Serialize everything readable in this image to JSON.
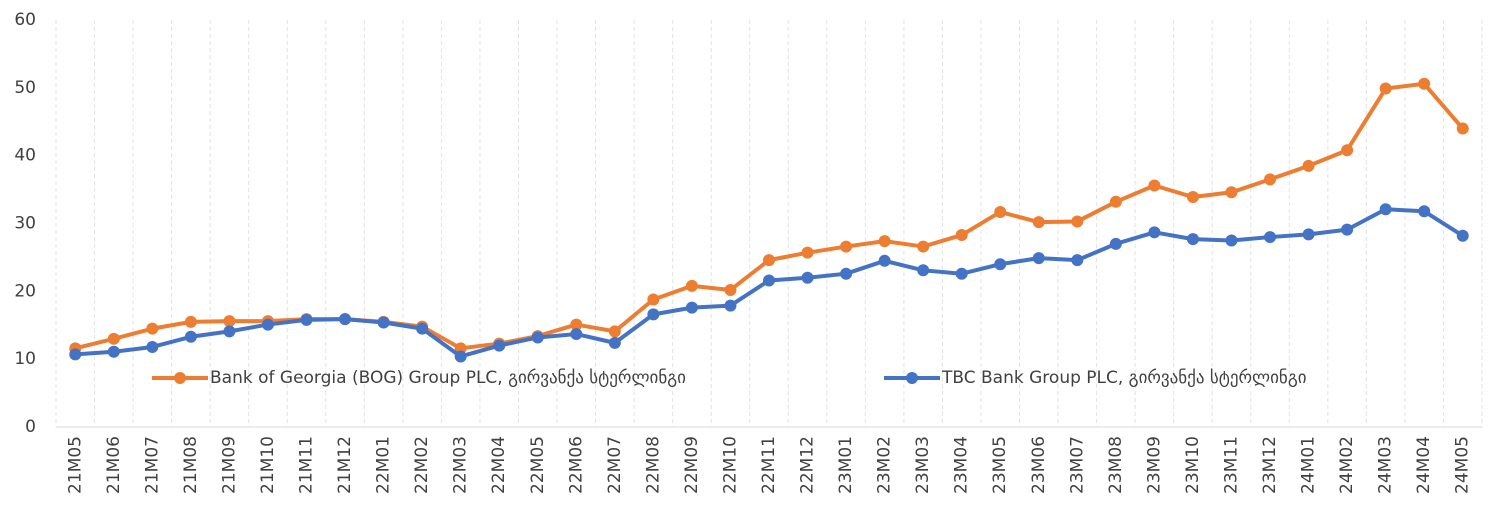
{
  "chart_data": {
    "type": "line",
    "categories": [
      "21M05",
      "21M06",
      "21M07",
      "21M08",
      "21M09",
      "21M10",
      "21M11",
      "21M12",
      "22M01",
      "22M02",
      "22M03",
      "22M04",
      "22M05",
      "22M06",
      "22M07",
      "22M08",
      "22M09",
      "22M10",
      "22M11",
      "22M12",
      "23M01",
      "23M02",
      "23M03",
      "23M04",
      "23M05",
      "23M06",
      "23M07",
      "23M08",
      "23M09",
      "23M10",
      "23M11",
      "23M12",
      "24M01",
      "24M02",
      "24M03",
      "24M04",
      "24M05"
    ],
    "series": [
      {
        "name": "Bank of Georgia (BOG) Group PLC, გირვანქა სტერლინგი",
        "color": "#ed7d31",
        "values": [
          11.6,
          13.0,
          14.5,
          15.5,
          15.6,
          15.6,
          15.9,
          15.9,
          15.5,
          14.8,
          11.6,
          12.3,
          13.4,
          15.1,
          14.1,
          18.8,
          20.8,
          20.2,
          24.6,
          25.7,
          26.6,
          27.4,
          26.6,
          28.3,
          31.7,
          30.2,
          30.3,
          33.2,
          35.6,
          33.9,
          34.6,
          36.5,
          38.5,
          40.8,
          49.9,
          50.6,
          44.0
        ]
      },
      {
        "name": "TBC Bank Group PLC, გირვანქა სტერლინგი",
        "color": "#4472c4",
        "values": [
          10.7,
          11.1,
          11.8,
          13.3,
          14.1,
          15.1,
          15.8,
          15.9,
          15.4,
          14.5,
          10.4,
          12.0,
          13.2,
          13.7,
          12.4,
          16.6,
          17.6,
          17.9,
          21.6,
          22.0,
          22.6,
          24.5,
          23.1,
          22.6,
          24.0,
          24.9,
          24.6,
          27.0,
          28.7,
          27.7,
          27.5,
          28.0,
          28.4,
          29.1,
          32.1,
          31.8,
          28.2
        ]
      }
    ],
    "ylim": [
      0,
      60
    ],
    "yticks": [
      0,
      10,
      20,
      30,
      40,
      50,
      60
    ],
    "grid": true
  }
}
